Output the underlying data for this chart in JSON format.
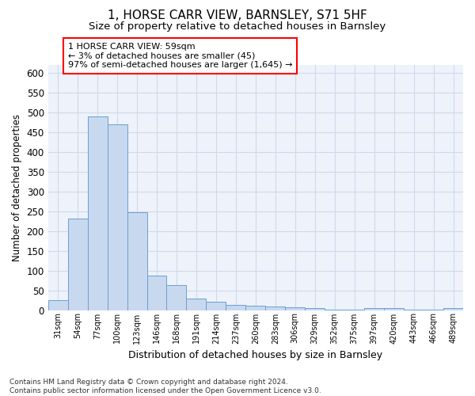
{
  "title": "1, HORSE CARR VIEW, BARNSLEY, S71 5HF",
  "subtitle": "Size of property relative to detached houses in Barnsley",
  "xlabel": "Distribution of detached houses by size in Barnsley",
  "ylabel": "Number of detached properties",
  "bar_color": "#c8d9ef",
  "bar_edge_color": "#6a9fd4",
  "grid_color": "#d0daea",
  "background_color": "#edf2fb",
  "categories": [
    "31sqm",
    "54sqm",
    "77sqm",
    "100sqm",
    "123sqm",
    "146sqm",
    "168sqm",
    "191sqm",
    "214sqm",
    "237sqm",
    "260sqm",
    "283sqm",
    "306sqm",
    "329sqm",
    "352sqm",
    "375sqm",
    "397sqm",
    "420sqm",
    "443sqm",
    "466sqm",
    "489sqm"
  ],
  "values": [
    25,
    232,
    490,
    470,
    248,
    88,
    63,
    30,
    22,
    13,
    11,
    10,
    8,
    5,
    1,
    1,
    6,
    6,
    1,
    1,
    5
  ],
  "ylim": [
    0,
    620
  ],
  "yticks": [
    0,
    50,
    100,
    150,
    200,
    250,
    300,
    350,
    400,
    450,
    500,
    550,
    600
  ],
  "annotation_text": "1 HORSE CARR VIEW: 59sqm\n← 3% of detached houses are smaller (45)\n97% of semi-detached houses are larger (1,645) →",
  "footnote": "Contains HM Land Registry data © Crown copyright and database right 2024.\nContains public sector information licensed under the Open Government Licence v3.0.",
  "title_fontsize": 11,
  "subtitle_fontsize": 9.5,
  "ylabel_fontsize": 8.5,
  "xlabel_fontsize": 9,
  "annotation_fontsize": 8,
  "footnote_fontsize": 6.5
}
